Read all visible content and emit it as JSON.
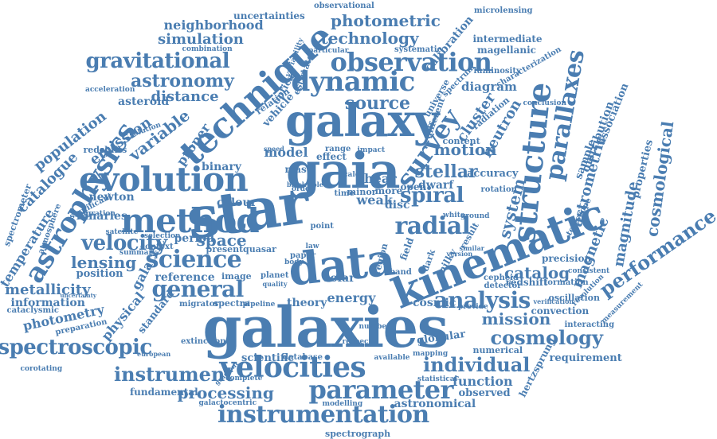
{
  "colors": {
    "word": "#4a7db1",
    "background": "#ffffff"
  },
  "words": [
    {
      "text": "galaxies"
    },
    {
      "text": "star"
    },
    {
      "text": "galaxy"
    },
    {
      "text": "gaia"
    },
    {
      "text": "data"
    },
    {
      "text": "kinematic"
    },
    {
      "text": "technique"
    },
    {
      "text": "method"
    },
    {
      "text": "evolution"
    },
    {
      "text": "structure"
    },
    {
      "text": "astrophysics"
    },
    {
      "text": "survey"
    },
    {
      "text": "dynamic"
    },
    {
      "text": "observation"
    },
    {
      "text": "velocities"
    },
    {
      "text": "parameter"
    },
    {
      "text": "instrumentation"
    },
    {
      "text": "spectroscopic"
    },
    {
      "text": "cosmology"
    },
    {
      "text": "science"
    },
    {
      "text": "general"
    },
    {
      "text": "radial"
    },
    {
      "text": "analysis"
    },
    {
      "text": "spiral"
    },
    {
      "text": "velocity"
    },
    {
      "text": "parallaxes"
    },
    {
      "text": "performance"
    },
    {
      "text": "gravitational"
    },
    {
      "text": "astronomy"
    },
    {
      "text": "instrument"
    },
    {
      "text": "individual"
    },
    {
      "text": "processing"
    },
    {
      "text": "mission"
    },
    {
      "text": "photometric"
    },
    {
      "text": "technology"
    },
    {
      "text": "source"
    },
    {
      "text": "stellar"
    },
    {
      "text": "motion"
    },
    {
      "text": "variable"
    },
    {
      "text": "system"
    },
    {
      "text": "astrometric"
    },
    {
      "text": "magnitude"
    },
    {
      "text": "cosmological"
    },
    {
      "text": "catalog"
    },
    {
      "text": "space"
    },
    {
      "text": "emission"
    },
    {
      "text": "magnetic"
    },
    {
      "text": "neutron"
    },
    {
      "text": "cluster"
    },
    {
      "text": "population"
    },
    {
      "text": "catalogue"
    },
    {
      "text": "temperature"
    },
    {
      "text": "simulation"
    },
    {
      "text": "neighborhood"
    },
    {
      "text": "lensing"
    },
    {
      "text": "metallicity"
    },
    {
      "text": "physical"
    },
    {
      "text": "photometry"
    },
    {
      "text": "galactic"
    },
    {
      "text": "distance"
    },
    {
      "text": "asteroid"
    },
    {
      "text": "proper"
    },
    {
      "text": "model"
    },
    {
      "text": "binary"
    },
    {
      "text": "binaries"
    },
    {
      "text": "newton"
    },
    {
      "text": "colour"
    },
    {
      "text": "period"
    },
    {
      "text": "reference"
    },
    {
      "text": "shear"
    },
    {
      "text": "weak"
    },
    {
      "text": "disc"
    },
    {
      "text": "open"
    },
    {
      "text": "dwarf"
    },
    {
      "text": "accuracy"
    },
    {
      "text": "diagram"
    },
    {
      "text": "distribution"
    },
    {
      "text": "sample"
    },
    {
      "text": "association"
    },
    {
      "text": "properties"
    },
    {
      "text": "energy"
    },
    {
      "text": "theory"
    },
    {
      "text": "solar"
    },
    {
      "text": "cosmic"
    },
    {
      "text": "function"
    },
    {
      "text": "observed"
    },
    {
      "text": "astronomical"
    },
    {
      "text": "requirement"
    },
    {
      "text": "fundamental"
    },
    {
      "text": "calibration"
    },
    {
      "text": "intermediate"
    },
    {
      "text": "magellanic"
    },
    {
      "text": "uncertainties"
    },
    {
      "text": "observational"
    },
    {
      "text": "microlensing"
    },
    {
      "text": "systematic"
    },
    {
      "text": "hertzsprung"
    },
    {
      "text": "spectrograph"
    },
    {
      "text": "information"
    },
    {
      "text": "position"
    },
    {
      "text": "standard"
    },
    {
      "text": "scientific"
    },
    {
      "text": "image"
    },
    {
      "text": "present"
    },
    {
      "text": "precision"
    },
    {
      "text": "convection"
    },
    {
      "text": "interacting"
    },
    {
      "text": "numerical"
    },
    {
      "text": "redshift"
    },
    {
      "text": "detector"
    },
    {
      "text": "globular"
    },
    {
      "text": "content"
    },
    {
      "text": "universe"
    },
    {
      "text": "different"
    },
    {
      "text": "optical"
    },
    {
      "text": "vehicle"
    },
    {
      "text": "relation"
    },
    {
      "text": "spectrometer"
    },
    {
      "text": "cataclysmic"
    },
    {
      "text": "preparation"
    },
    {
      "text": "spectra"
    },
    {
      "text": "migrator"
    },
    {
      "text": "pipeline"
    },
    {
      "text": "database"
    },
    {
      "text": "galactocentric"
    },
    {
      "text": "modelling"
    },
    {
      "text": "available"
    },
    {
      "text": "extinction"
    },
    {
      "text": "selection"
    },
    {
      "text": "context"
    },
    {
      "text": "summary"
    },
    {
      "text": "quasar"
    },
    {
      "text": "planet"
    },
    {
      "text": "quality"
    },
    {
      "text": "mas"
    },
    {
      "text": "effect"
    },
    {
      "text": "range"
    },
    {
      "text": "more"
    },
    {
      "text": "minor"
    },
    {
      "text": "time"
    },
    {
      "text": "milky"
    },
    {
      "text": "dark"
    },
    {
      "text": "field"
    },
    {
      "text": "region"
    },
    {
      "text": "band"
    },
    {
      "text": "result"
    },
    {
      "text": "rotation"
    },
    {
      "text": "telescope"
    },
    {
      "text": "resolution"
    },
    {
      "text": "oscillation"
    },
    {
      "text": "formation"
    },
    {
      "text": "cepheid"
    },
    {
      "text": "consistent"
    },
    {
      "text": "measurement"
    },
    {
      "text": "verification"
    },
    {
      "text": "conclusion"
    },
    {
      "text": "radiation"
    },
    {
      "text": "luminosity"
    },
    {
      "text": "spectrum"
    },
    {
      "text": "characterization"
    },
    {
      "text": "combination"
    },
    {
      "text": "acceleration"
    },
    {
      "text": "redshifts"
    },
    {
      "text": "atmosphere"
    },
    {
      "text": "estimate"
    },
    {
      "text": "variability"
    },
    {
      "text": "particular"
    },
    {
      "text": "significant"
    },
    {
      "text": "migration"
    },
    {
      "text": "satellite"
    },
    {
      "text": "mapping"
    },
    {
      "text": "statistical"
    },
    {
      "text": "complete"
    },
    {
      "text": "number"
    },
    {
      "text": "respect"
    },
    {
      "text": "provide"
    },
    {
      "text": "version"
    },
    {
      "text": "similar"
    },
    {
      "text": "white"
    },
    {
      "text": "ground"
    },
    {
      "text": "impact"
    },
    {
      "text": "law"
    },
    {
      "text": "point"
    },
    {
      "text": "scale"
    },
    {
      "text": "order"
    },
    {
      "text": "paper"
    },
    {
      "text": "body"
    },
    {
      "text": "solution"
    },
    {
      "text": "speed"
    },
    {
      "text": "corotating"
    },
    {
      "text": "european"
    },
    {
      "text": "gradient"
    },
    {
      "text": "uncertainty"
    },
    {
      "text": "black"
    },
    {
      "text": "hole"
    }
  ]
}
